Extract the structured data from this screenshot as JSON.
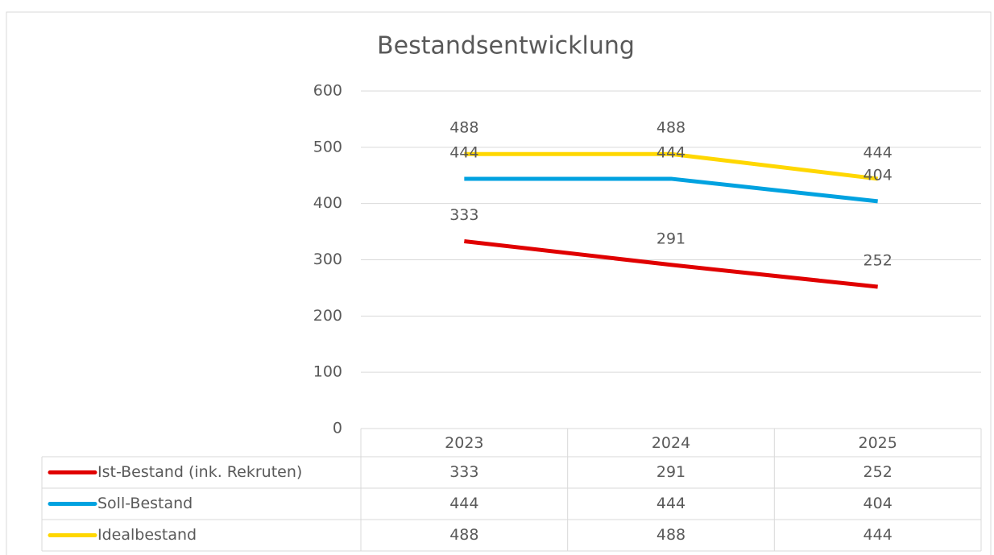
{
  "chart_data": {
    "type": "line",
    "title": "Bestandsentwicklung",
    "categories": [
      "2023",
      "2024",
      "2025"
    ],
    "series": [
      {
        "name": "Ist-Bestand (ink. Rekruten)",
        "color": "#e00000",
        "values": [
          333,
          291,
          252
        ]
      },
      {
        "name": "Soll-Bestand",
        "color": "#00a2e0",
        "values": [
          444,
          444,
          404
        ]
      },
      {
        "name": "Idealbestand",
        "color": "#ffd700",
        "values": [
          488,
          488,
          444
        ]
      }
    ],
    "ylim": [
      0,
      600
    ],
    "yticks": [
      0,
      100,
      200,
      300,
      400,
      500,
      600
    ],
    "grid": true,
    "data_table": true
  }
}
